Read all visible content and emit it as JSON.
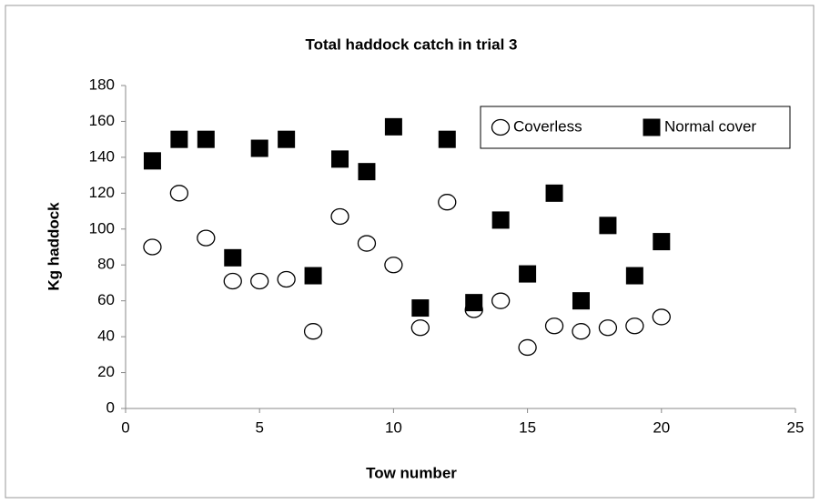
{
  "chart_data": {
    "type": "scatter",
    "title": "Total haddock catch in trial 3",
    "x_label": "Tow number",
    "y_label": "Kg haddock",
    "xlim": [
      0,
      25
    ],
    "xticks": [
      0,
      5,
      10,
      15,
      20,
      25
    ],
    "ylim": [
      0,
      180
    ],
    "yticks": [
      0,
      20,
      40,
      60,
      80,
      100,
      120,
      140,
      160,
      180
    ],
    "grid": false,
    "legend": "top-right",
    "series": [
      {
        "name": "Coverless",
        "color": "#ffffff",
        "marker": "circle",
        "x": [
          1,
          2,
          3,
          4,
          5,
          6,
          7,
          8,
          9,
          10,
          11,
          12,
          13,
          14,
          15,
          16,
          17,
          18,
          19,
          20
        ],
        "values": [
          90,
          120,
          95,
          71,
          71,
          72,
          43,
          107,
          92,
          80,
          45,
          115,
          55,
          60,
          34,
          46,
          43,
          45,
          46,
          51
        ]
      },
      {
        "name": "Normal cover",
        "color": "#000000",
        "marker": "square",
        "x": [
          1,
          2,
          3,
          4,
          5,
          6,
          7,
          8,
          9,
          10,
          11,
          12,
          13,
          14,
          15,
          16,
          17,
          18,
          19,
          20
        ],
        "values": [
          138,
          150,
          150,
          84,
          145,
          150,
          74,
          139,
          132,
          157,
          56,
          150,
          59,
          105,
          75,
          120,
          60,
          102,
          74,
          93
        ]
      }
    ]
  }
}
